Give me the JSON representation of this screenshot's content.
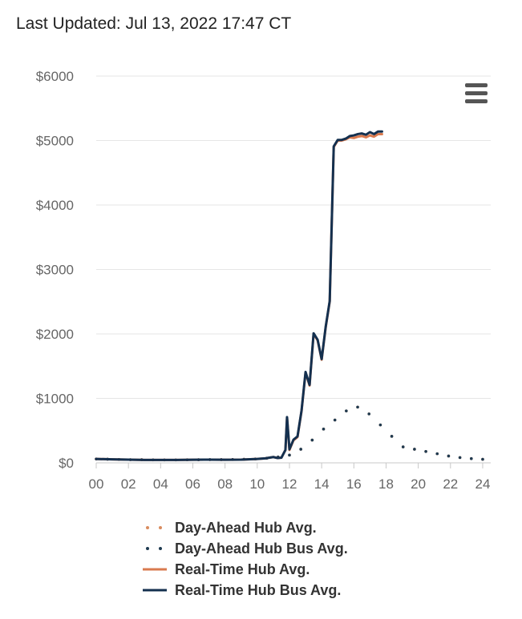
{
  "header": {
    "last_updated": "Last Updated: Jul 13, 2022 17:47 CT"
  },
  "colors": {
    "day_ahead_hub": "#d98c5f",
    "day_ahead_hub_bus": "#1f3a50",
    "real_time_hub": "#d97a4f",
    "real_time_hub_bus": "#14304f",
    "grid": "#e6e6e6",
    "axis_text": "#666666"
  },
  "menu": {
    "icon": "hamburger-menu-icon"
  },
  "chart_data": {
    "type": "line",
    "xlim": [
      0,
      24.5
    ],
    "ylim": [
      0,
      6000
    ],
    "x_ticks": [
      {
        "value": 0,
        "label": "00"
      },
      {
        "value": 2,
        "label": "02"
      },
      {
        "value": 4,
        "label": "04"
      },
      {
        "value": 6,
        "label": "06"
      },
      {
        "value": 8,
        "label": "08"
      },
      {
        "value": 10,
        "label": "10"
      },
      {
        "value": 12,
        "label": "12"
      },
      {
        "value": 14,
        "label": "14"
      },
      {
        "value": 16,
        "label": "16"
      },
      {
        "value": 18,
        "label": "18"
      },
      {
        "value": 20,
        "label": "20"
      },
      {
        "value": 22,
        "label": "22"
      },
      {
        "value": 24,
        "label": "24"
      }
    ],
    "y_ticks": [
      {
        "value": 0,
        "label": "$0"
      },
      {
        "value": 1000,
        "label": "$1000"
      },
      {
        "value": 2000,
        "label": "$2000"
      },
      {
        "value": 3000,
        "label": "$3000"
      },
      {
        "value": 4000,
        "label": "$4000"
      },
      {
        "value": 5000,
        "label": "$5000"
      },
      {
        "value": 6000,
        "label": "$6000"
      }
    ],
    "grid": true,
    "legend_position": "bottom",
    "series": [
      {
        "name": "Day-Ahead Hub Avg.",
        "style": "dotted",
        "marker_shape": "dot",
        "x": [
          0,
          1,
          2,
          3,
          4,
          5,
          6,
          7,
          8,
          9,
          10,
          11,
          12,
          13,
          14,
          15,
          16,
          17,
          18,
          19,
          20,
          21,
          22,
          23,
          24
        ],
        "y": [
          60,
          55,
          50,
          48,
          45,
          45,
          48,
          50,
          50,
          55,
          60,
          80,
          120,
          250,
          500,
          700,
          900,
          750,
          500,
          250,
          200,
          150,
          100,
          70,
          55
        ]
      },
      {
        "name": "Day-Ahead Hub Bus Avg.",
        "style": "dotted",
        "marker_shape": "dot",
        "x": [
          0,
          1,
          2,
          3,
          4,
          5,
          6,
          7,
          8,
          9,
          10,
          11,
          12,
          13,
          14,
          15,
          16,
          17,
          18,
          19,
          20,
          21,
          22,
          23,
          24
        ],
        "y": [
          60,
          55,
          50,
          48,
          45,
          45,
          48,
          50,
          50,
          55,
          60,
          80,
          120,
          250,
          500,
          700,
          900,
          750,
          500,
          250,
          200,
          150,
          100,
          70,
          55
        ]
      },
      {
        "name": "Real-Time Hub Avg.",
        "style": "solid",
        "x": [
          0,
          1,
          2,
          3,
          4,
          5,
          6,
          7,
          8,
          9,
          10,
          10.5,
          11,
          11.25,
          11.5,
          11.75,
          11.85,
          12,
          12.25,
          12.5,
          12.75,
          13,
          13.25,
          13.5,
          13.75,
          14,
          14.25,
          14.5,
          14.75,
          15,
          15.25,
          15.5,
          15.75,
          16,
          16.25,
          16.5,
          16.75,
          17,
          17.25,
          17.5,
          17.75
        ],
        "y": [
          60,
          55,
          50,
          45,
          45,
          45,
          48,
          50,
          48,
          50,
          60,
          70,
          90,
          75,
          80,
          200,
          700,
          200,
          350,
          400,
          800,
          1400,
          1200,
          2000,
          1900,
          1600,
          2100,
          2500,
          4900,
          5000,
          5000,
          5020,
          5050,
          5040,
          5060,
          5070,
          5050,
          5080,
          5060,
          5100,
          5100
        ]
      },
      {
        "name": "Real-Time Hub Bus Avg.",
        "style": "solid",
        "x": [
          0,
          1,
          2,
          3,
          4,
          5,
          6,
          7,
          8,
          9,
          10,
          10.5,
          11,
          11.25,
          11.5,
          11.75,
          11.85,
          12,
          12.25,
          12.5,
          12.75,
          13,
          13.25,
          13.5,
          13.75,
          14,
          14.25,
          14.5,
          14.75,
          15,
          15.25,
          15.5,
          15.75,
          16,
          16.25,
          16.5,
          16.75,
          17,
          17.25,
          17.5,
          17.75
        ],
        "y": [
          60,
          55,
          50,
          45,
          45,
          45,
          48,
          50,
          48,
          50,
          60,
          70,
          90,
          75,
          80,
          200,
          710,
          210,
          360,
          410,
          810,
          1410,
          1210,
          2010,
          1910,
          1610,
          2110,
          2510,
          4910,
          5010,
          5010,
          5030,
          5070,
          5080,
          5100,
          5110,
          5090,
          5130,
          5100,
          5140,
          5140
        ]
      }
    ]
  }
}
